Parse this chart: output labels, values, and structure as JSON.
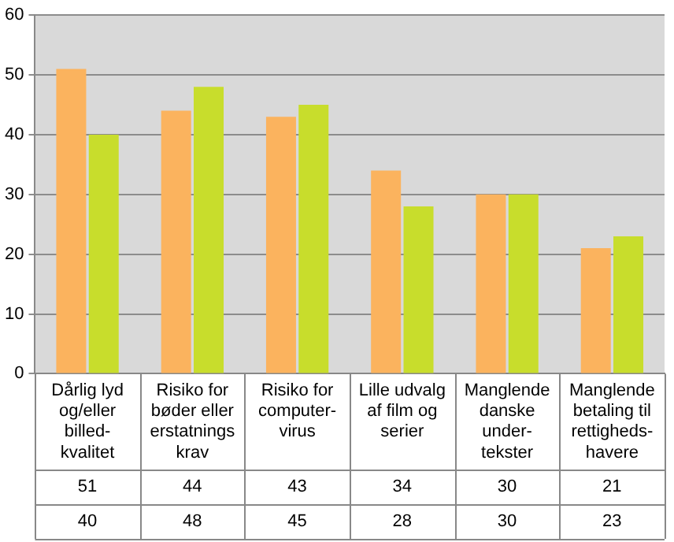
{
  "chart_data": {
    "type": "bar",
    "categories": [
      "Dårlig lyd\nog/eller\nbilled-\nkvalitet",
      "Risiko for\nbøder eller\nerstatnings\nkrav",
      "Risiko for\ncomputer-\nvirus",
      "Lille udvalg\naf film og\nserier",
      "Manglende\ndanske\nunder-\ntekster",
      "Manglende\nbetaling til\nrettigheds-\nhavere"
    ],
    "series": [
      {
        "color": "#fbb35e",
        "values": [
          51,
          44,
          43,
          34,
          30,
          21
        ]
      },
      {
        "color": "#c8dd2c",
        "values": [
          40,
          48,
          45,
          28,
          30,
          23
        ]
      }
    ],
    "ylim": [
      0,
      60
    ],
    "yticks": [
      0,
      10,
      20,
      30,
      40,
      50,
      60
    ],
    "grid": "y",
    "data_labels": true
  }
}
